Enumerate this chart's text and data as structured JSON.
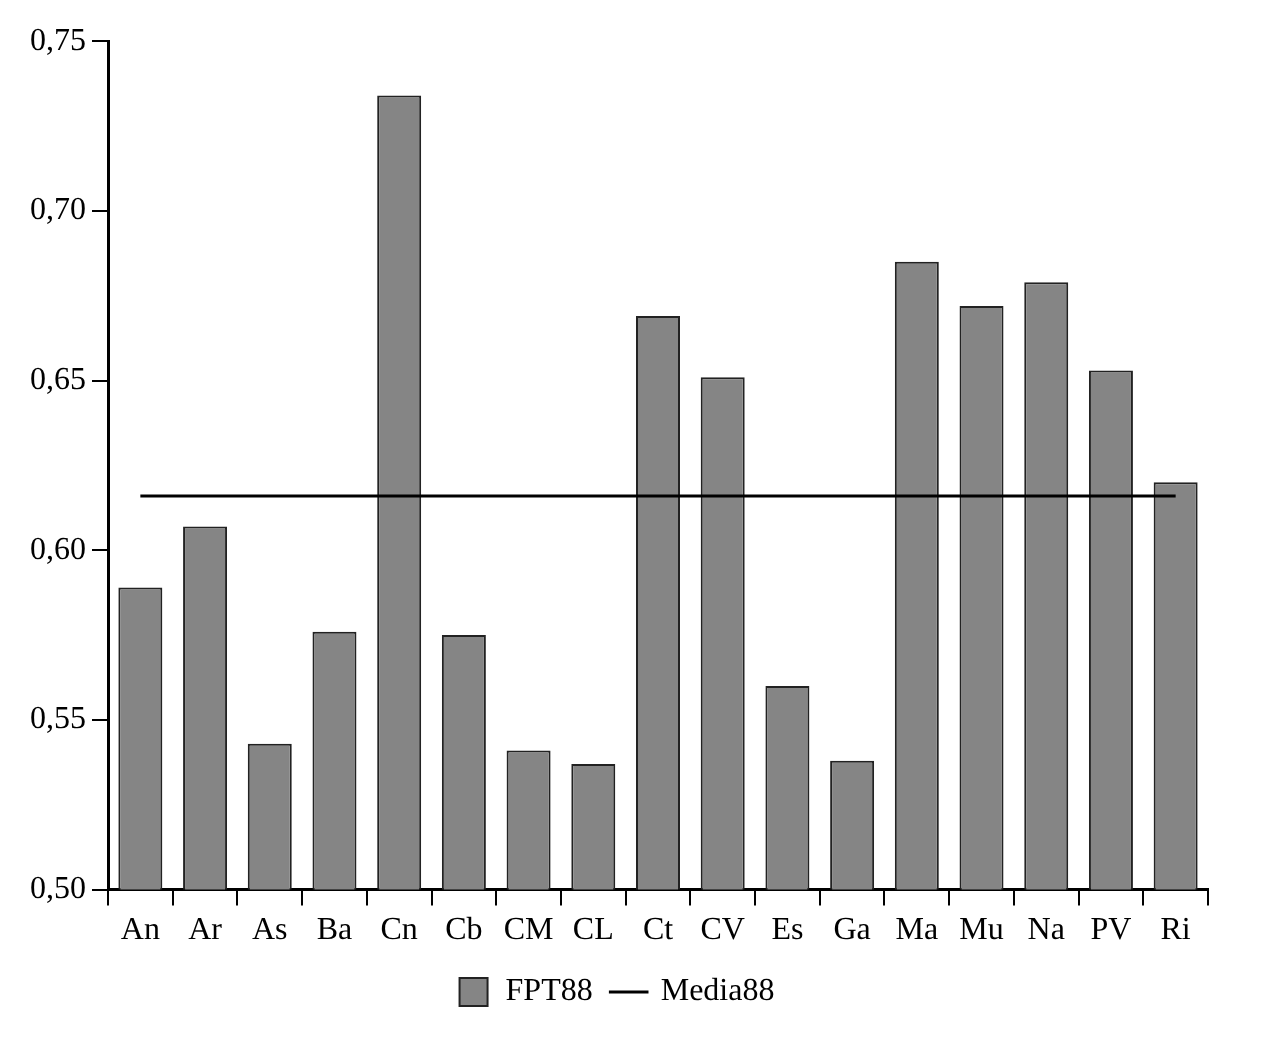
{
  "chart_data": {
    "type": "bar",
    "categories": [
      "An",
      "Ar",
      "As",
      "Ba",
      "Cn",
      "Cb",
      "CM",
      "CL",
      "Ct",
      "CV",
      "Es",
      "Ga",
      "Ma",
      "Mu",
      "Na",
      "PV",
      "Ri"
    ],
    "series": [
      {
        "name": "FPT88",
        "color": "#858585",
        "values": [
          0.589,
          0.607,
          0.543,
          0.576,
          0.734,
          0.575,
          0.541,
          0.537,
          0.669,
          0.651,
          0.56,
          0.538,
          0.685,
          0.672,
          0.679,
          0.653,
          0.62
        ]
      },
      {
        "name": "Media88",
        "type": "line",
        "color": "#000000",
        "values": [
          0.616,
          0.616,
          0.616,
          0.616,
          0.616,
          0.616,
          0.616,
          0.616,
          0.616,
          0.616,
          0.616,
          0.616,
          0.616,
          0.616,
          0.616,
          0.616,
          0.616
        ]
      }
    ],
    "ylim": [
      0.5,
      0.75
    ],
    "yticks": [
      {
        "value": 0.5,
        "label": "0,50"
      },
      {
        "value": 0.55,
        "label": "0,55"
      },
      {
        "value": 0.6,
        "label": "0,60"
      },
      {
        "value": 0.65,
        "label": "0,65"
      },
      {
        "value": 0.7,
        "label": "0,70"
      },
      {
        "value": 0.75,
        "label": "0,75"
      }
    ],
    "grid": false,
    "legend": "bottom",
    "marker": "none",
    "line_style": "solid"
  }
}
